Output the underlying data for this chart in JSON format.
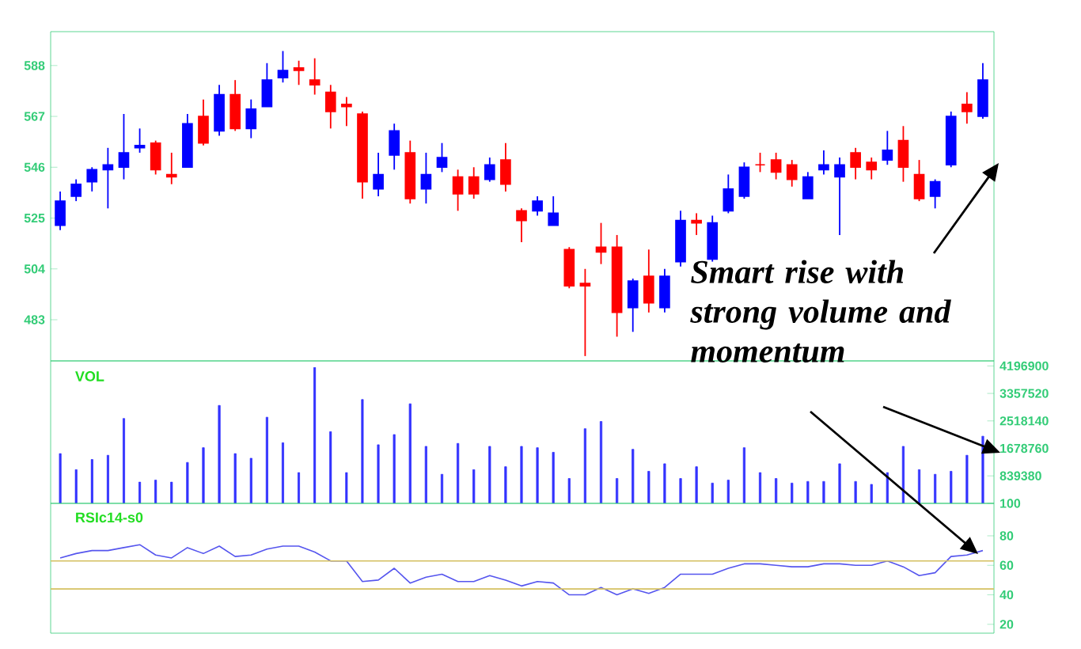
{
  "chart_data": [
    {
      "type": "candlestick",
      "categories": [
        null,
        null,
        null,
        null,
        null,
        null,
        null,
        null,
        null,
        null,
        null,
        null,
        null,
        null,
        null,
        null,
        null,
        null,
        null,
        null,
        null,
        null,
        null,
        null,
        null,
        null,
        null,
        null,
        null,
        null,
        null,
        null,
        null,
        null,
        null,
        null,
        null,
        null,
        null,
        null,
        null,
        null,
        null,
        null,
        null,
        null,
        null,
        null,
        null,
        null,
        null,
        null,
        null,
        null,
        null,
        null,
        null,
        null,
        null
      ],
      "ohlc": [
        [
          522,
          536,
          520,
          532
        ],
        [
          534,
          541,
          532,
          539
        ],
        [
          540,
          546,
          536,
          545
        ],
        [
          545,
          554,
          529,
          547
        ],
        [
          546,
          568,
          541,
          552
        ],
        [
          554,
          562,
          552,
          555
        ],
        [
          556,
          557,
          543,
          545
        ],
        [
          543,
          552,
          539,
          542
        ],
        [
          546,
          568,
          546,
          564
        ],
        [
          567,
          574,
          555,
          556
        ],
        [
          561,
          580,
          559,
          576
        ],
        [
          576,
          582,
          561,
          562
        ],
        [
          562,
          574,
          558,
          570
        ],
        [
          571,
          589,
          571,
          582
        ],
        [
          583,
          594,
          581,
          586
        ],
        [
          587,
          590,
          580,
          586
        ],
        [
          582,
          591,
          576,
          580
        ],
        [
          577,
          580,
          562,
          569
        ],
        [
          572,
          575,
          563,
          571
        ],
        [
          568,
          569,
          533,
          540
        ],
        [
          537,
          552,
          534,
          543
        ],
        [
          551,
          564,
          545,
          561
        ],
        [
          552,
          557,
          531,
          533
        ],
        [
          537,
          552,
          531,
          543
        ],
        [
          546,
          556,
          544,
          550
        ],
        [
          542,
          545,
          528,
          535
        ],
        [
          542,
          546,
          533,
          535
        ],
        [
          541,
          550,
          540,
          547
        ],
        [
          549,
          556,
          536,
          539
        ],
        [
          528,
          529,
          515,
          524
        ],
        [
          528,
          534,
          526,
          532
        ],
        [
          522,
          534,
          522,
          527
        ],
        [
          512,
          513,
          496,
          497
        ],
        [
          498,
          504,
          468,
          497
        ],
        [
          513,
          523,
          506,
          511
        ],
        [
          513,
          518,
          476,
          486
        ],
        [
          488,
          500,
          478,
          499
        ],
        [
          501,
          512,
          486,
          490
        ],
        [
          488,
          504,
          486,
          501
        ],
        [
          507,
          528,
          505,
          524
        ],
        [
          524,
          527,
          518,
          523
        ],
        [
          508,
          526,
          507,
          523
        ],
        [
          528,
          543,
          527,
          537
        ],
        [
          534,
          548,
          533,
          546
        ],
        [
          547,
          552,
          544,
          547
        ],
        [
          549,
          552,
          541,
          544
        ],
        [
          547,
          549,
          538,
          541
        ],
        [
          533,
          544,
          533,
          542
        ],
        [
          545,
          553,
          543,
          547
        ],
        [
          542,
          550,
          518,
          547
        ],
        [
          552,
          554,
          541,
          546
        ],
        [
          548,
          550,
          541,
          545
        ],
        [
          549,
          561,
          547,
          553
        ],
        [
          557,
          563,
          540,
          546
        ],
        [
          543,
          549,
          532,
          533
        ],
        [
          534,
          541,
          529,
          540
        ],
        [
          547,
          569,
          546,
          567
        ],
        [
          572,
          577,
          564,
          569
        ],
        [
          567,
          589,
          566,
          582
        ]
      ],
      "colors": [
        "#0000ff",
        "#0000ff",
        "#0000ff",
        "#0000ff",
        "#0000ff",
        "#0000ff",
        "#ff0000",
        "#ff0000",
        "#0000ff",
        "#ff0000",
        "#0000ff",
        "#ff0000",
        "#0000ff",
        "#0000ff",
        "#0000ff",
        "#ff0000",
        "#ff0000",
        "#ff0000",
        "#ff0000",
        "#ff0000",
        "#0000ff",
        "#0000ff",
        "#ff0000",
        "#0000ff",
        "#0000ff",
        "#ff0000",
        "#ff0000",
        "#0000ff",
        "#ff0000",
        "#ff0000",
        "#0000ff",
        "#0000ff",
        "#ff0000",
        "#ff0000",
        "#ff0000",
        "#ff0000",
        "#0000ff",
        "#ff0000",
        "#0000ff",
        "#0000ff",
        "#ff0000",
        "#0000ff",
        "#0000ff",
        "#0000ff",
        "#ff0000",
        "#ff0000",
        "#ff0000",
        "#0000ff",
        "#0000ff",
        "#0000ff",
        "#ff0000",
        "#ff0000",
        "#0000ff",
        "#ff0000",
        "#ff0000",
        "#0000ff",
        "#0000ff",
        "#ff0000",
        "#0000ff"
      ],
      "ylim": [
        466,
        602
      ],
      "yticks": [
        483,
        504,
        525,
        546,
        567,
        588
      ],
      "tick_labels": "y",
      "annotations": [
        "Smart rise with strong volume and momentum"
      ]
    },
    {
      "type": "bar",
      "title": "VOL",
      "categories": [
        null,
        null,
        null,
        null,
        null,
        null,
        null,
        null,
        null,
        null,
        null,
        null,
        null,
        null,
        null,
        null,
        null,
        null,
        null,
        null,
        null,
        null,
        null,
        null,
        null,
        null,
        null,
        null,
        null,
        null,
        null,
        null,
        null,
        null,
        null,
        null,
        null,
        null,
        null,
        null,
        null,
        null,
        null,
        null,
        null,
        null,
        null,
        null,
        null,
        null,
        null,
        null,
        null,
        null,
        null,
        null,
        null,
        null,
        null
      ],
      "values": [
        1520000,
        1030000,
        1340000,
        1470000,
        2590000,
        650000,
        710000,
        650000,
        1250000,
        1700000,
        2990000,
        1520000,
        1380000,
        2630000,
        1850000,
        940000,
        4150000,
        2190000,
        940000,
        3170000,
        1790000,
        2100000,
        3040000,
        1740000,
        890000,
        1830000,
        1030000,
        1740000,
        1120000,
        1740000,
        1700000,
        1560000,
        760000,
        2280000,
        2500000,
        760000,
        1650000,
        980000,
        1210000,
        760000,
        1120000,
        620000,
        710000,
        1700000,
        940000,
        760000,
        620000,
        670000,
        670000,
        1210000,
        670000,
        580000,
        940000,
        1740000,
        1030000,
        890000,
        980000,
        1470000,
        2050000
      ],
      "color": "#3333ff",
      "ylim": [
        100,
        4350000
      ],
      "yticks": [
        100,
        839380,
        1678760,
        2518140,
        3357520,
        4196900
      ],
      "tick_labels": "y"
    },
    {
      "type": "line",
      "title": "RSIc14-s0",
      "categories": [
        null,
        null,
        null,
        null,
        null,
        null,
        null,
        null,
        null,
        null,
        null,
        null,
        null,
        null,
        null,
        null,
        null,
        null,
        null,
        null,
        null,
        null,
        null,
        null,
        null,
        null,
        null,
        null,
        null,
        null,
        null,
        null,
        null,
        null,
        null,
        null,
        null,
        null,
        null,
        null,
        null,
        null,
        null,
        null,
        null,
        null,
        null,
        null,
        null,
        null,
        null,
        null,
        null,
        null,
        null,
        null,
        null,
        null,
        null
      ],
      "values": [
        65,
        68,
        70,
        70,
        72,
        74,
        67,
        65,
        72,
        68,
        73,
        66,
        67,
        71,
        73,
        73,
        69,
        63,
        63,
        49,
        50,
        58,
        48,
        52,
        54,
        49,
        49,
        53,
        50,
        46,
        49,
        48,
        40,
        40,
        45,
        40,
        44,
        41,
        45,
        54,
        54,
        54,
        58,
        61,
        61,
        60,
        59,
        59,
        61,
        61,
        60,
        60,
        63,
        59,
        53,
        55,
        66,
        67,
        70
      ],
      "color": "#5555ee",
      "ylim": [
        14,
        102
      ],
      "yticks": [
        20,
        40,
        60,
        80
      ],
      "tick_labels": "y",
      "ref_lines": [
        {
          "axis": "y",
          "value": 63,
          "color": "#d4c060"
        },
        {
          "axis": "y",
          "value": 44,
          "color": "#d4c060"
        }
      ]
    }
  ]
}
